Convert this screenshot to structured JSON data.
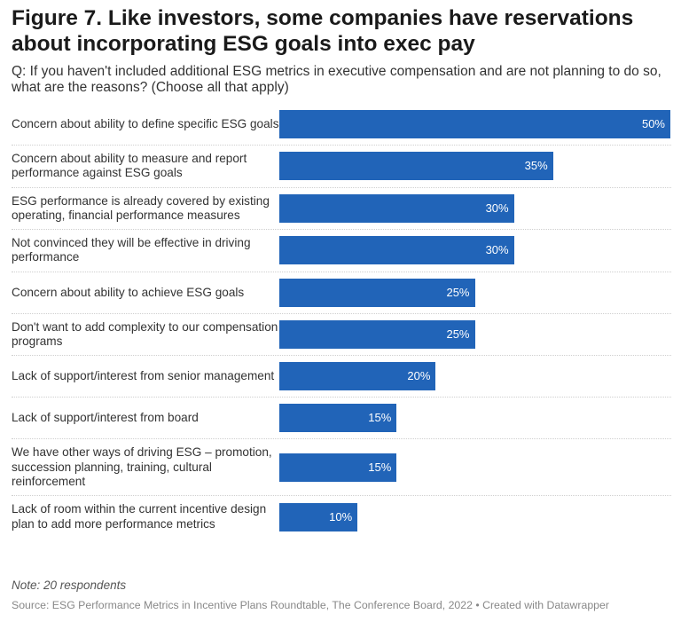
{
  "chart_data": {
    "type": "bar",
    "orientation": "horizontal",
    "title": "Figure 7. Like investors, some companies have reservations about incorporating ESG goals into exec pay",
    "subtitle": "Q: If you haven't included additional ESG metrics in executive compensation and are not planning to do so, what are the reasons? (Choose all that apply)",
    "categories": [
      "Concern about ability to define specific ESG goals",
      "Concern about ability to measure and report performance against ESG goals",
      "ESG performance is already covered by existing operating, financial performance measures",
      "Not convinced they will be effective in driving performance",
      "Concern about ability to achieve ESG goals",
      "Don't want to add complexity to our compensation programs",
      "Lack of support/interest from senior management",
      "Lack of support/interest from board",
      "We have other ways of driving ESG – promotion, succession planning, training, cultural reinforcement",
      "Lack of room within the current incentive design plan to add more performance metrics"
    ],
    "values": [
      50,
      35,
      30,
      30,
      25,
      25,
      20,
      15,
      15,
      10
    ],
    "value_labels": [
      "50%",
      "35%",
      "30%",
      "30%",
      "25%",
      "25%",
      "20%",
      "15%",
      "15%",
      "10%"
    ],
    "unit": "%",
    "xlim": [
      0,
      50
    ],
    "bar_color": "#2164b8",
    "note": "Note: 20 respondents",
    "source": "Source: ESG Performance Metrics in Incentive Plans Roundtable, The Conference Board, 2022 • Created with Datawrapper"
  }
}
